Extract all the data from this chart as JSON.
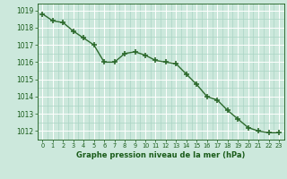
{
  "x": [
    0,
    1,
    2,
    3,
    4,
    5,
    6,
    7,
    8,
    9,
    10,
    11,
    12,
    13,
    14,
    15,
    16,
    17,
    18,
    19,
    20,
    21,
    22,
    23
  ],
  "y": [
    1018.8,
    1018.4,
    1018.3,
    1017.8,
    1017.4,
    1017.0,
    1016.0,
    1016.0,
    1016.5,
    1016.6,
    1016.4,
    1016.1,
    1016.0,
    1015.9,
    1015.3,
    1014.7,
    1014.0,
    1013.8,
    1013.2,
    1012.7,
    1012.2,
    1012.0,
    1011.9,
    1011.9
  ],
  "line_color": "#2d6a2d",
  "marker_color": "#2d6a2d",
  "bg_color": "#cce8dc",
  "grid_major_color": "#aad4c4",
  "grid_white_color": "#ffffff",
  "xlabel": "Graphe pression niveau de la mer (hPa)",
  "xlabel_color": "#1a5c1a",
  "tick_color": "#1a5c1a",
  "ylim": [
    1011.5,
    1019.4
  ],
  "yticks": [
    1012,
    1013,
    1014,
    1015,
    1016,
    1017,
    1018,
    1019
  ],
  "xticks": [
    0,
    1,
    2,
    3,
    4,
    5,
    6,
    7,
    8,
    9,
    10,
    11,
    12,
    13,
    14,
    15,
    16,
    17,
    18,
    19,
    20,
    21,
    22,
    23
  ]
}
